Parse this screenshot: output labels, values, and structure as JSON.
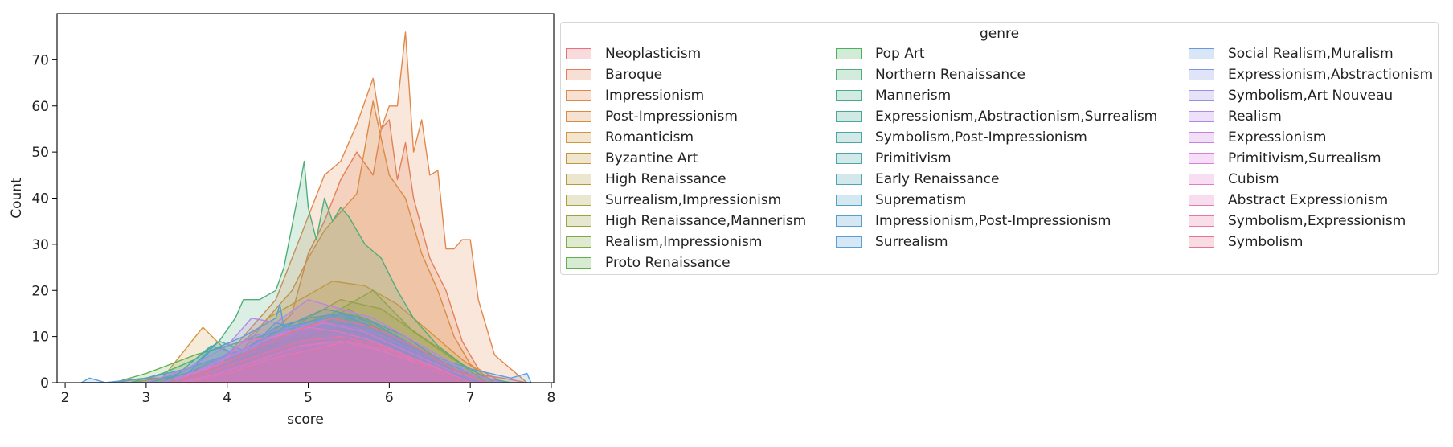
{
  "chart_data": {
    "type": "area",
    "title": "",
    "xlabel": "score",
    "ylabel": "Count",
    "xlim": [
      1.9,
      8.03
    ],
    "ylim": [
      0,
      80
    ],
    "xticks": [
      "2",
      "3",
      "4",
      "5",
      "6",
      "7",
      "8"
    ],
    "yticks": [
      "0",
      "10",
      "20",
      "30",
      "40",
      "50",
      "60",
      "70"
    ],
    "grid": false,
    "legend_placement": "outside right",
    "legend_title": "genre",
    "series": [
      {
        "name": "Neoplasticism",
        "color": "#e8717a",
        "x": [
          2.2,
          2.6,
          3.0,
          3.4,
          3.8,
          4.2,
          4.6,
          5.0,
          5.4,
          5.8,
          6.2,
          6.6,
          7.0,
          7.4,
          7.7
        ],
        "values": [
          0,
          0,
          1,
          1,
          2,
          3,
          4,
          8,
          6,
          7,
          4,
          3,
          2,
          1,
          0
        ]
      },
      {
        "name": "Baroque",
        "color": "#e57f5b",
        "x": [
          3.2,
          3.6,
          4.0,
          4.4,
          4.8,
          5.0,
          5.2,
          5.4,
          5.6,
          5.8,
          5.9,
          6.0,
          6.1,
          6.2,
          6.3,
          6.5,
          6.7,
          6.9,
          7.1,
          7.4
        ],
        "values": [
          0,
          2,
          4,
          8,
          15,
          28,
          35,
          44,
          50,
          45,
          55,
          57,
          44,
          52,
          40,
          27,
          20,
          9,
          3,
          0
        ]
      },
      {
        "name": "Impressionism",
        "color": "#e2884b",
        "x": [
          2.5,
          3.0,
          3.5,
          4.0,
          4.3,
          4.6,
          4.8,
          5.0,
          5.2,
          5.4,
          5.6,
          5.8,
          5.9,
          6.0,
          6.1,
          6.2,
          6.3,
          6.4,
          6.5,
          6.6,
          6.7,
          6.8,
          6.9,
          7.0,
          7.1,
          7.3,
          7.5,
          7.7
        ],
        "values": [
          0,
          1,
          3,
          6,
          12,
          18,
          27,
          36,
          45,
          48,
          56,
          66,
          55,
          60,
          60,
          76,
          50,
          57,
          45,
          46,
          29,
          29,
          31,
          31,
          18,
          6,
          3,
          0
        ]
      },
      {
        "name": "Post-Impressionism",
        "color": "#da8c44",
        "x": [
          3.0,
          3.5,
          4.0,
          4.4,
          4.8,
          5.0,
          5.2,
          5.4,
          5.6,
          5.8,
          6.0,
          6.2,
          6.4,
          6.6,
          6.8,
          7.0,
          7.3
        ],
        "values": [
          0,
          2,
          6,
          12,
          20,
          27,
          33,
          37,
          41,
          61,
          45,
          40,
          28,
          20,
          10,
          4,
          0
        ]
      },
      {
        "name": "Romanticism",
        "color": "#d3963f",
        "x": [
          2.8,
          3.2,
          3.7,
          4.1,
          4.5,
          4.9,
          5.3,
          5.7,
          6.1,
          6.5,
          6.9,
          7.3
        ],
        "values": [
          0,
          1,
          12,
          5,
          14,
          18,
          22,
          21,
          17,
          11,
          5,
          0
        ]
      },
      {
        "name": "Byzantine Art",
        "color": "#c29638",
        "x": [
          3.0,
          3.5,
          4.0,
          4.5,
          5.0,
          5.5,
          6.0,
          6.5,
          7.0
        ],
        "values": [
          0,
          2,
          4,
          7,
          12,
          16,
          10,
          6,
          0
        ]
      },
      {
        "name": "High Renaissance",
        "color": "#b39a3b",
        "x": [
          3.4,
          3.9,
          4.4,
          4.9,
          5.4,
          5.9,
          6.4,
          6.9,
          7.3
        ],
        "values": [
          0,
          3,
          6,
          13,
          18,
          16,
          10,
          4,
          0
        ]
      },
      {
        "name": "Surrealism,Impressionism",
        "color": "#a6a03f",
        "x": [
          3.5,
          4.0,
          4.5,
          5.0,
          5.5,
          6.0,
          6.5,
          7.0
        ],
        "values": [
          0,
          2,
          5,
          9,
          12,
          9,
          4,
          0
        ]
      },
      {
        "name": "High Renaissance,Mannerism",
        "color": "#98a53f",
        "x": [
          3.3,
          3.8,
          4.3,
          4.8,
          5.3,
          5.8,
          6.3,
          6.8,
          7.2
        ],
        "values": [
          0,
          4,
          7,
          12,
          15,
          20,
          11,
          5,
          0
        ]
      },
      {
        "name": "Realism,Impressionism",
        "color": "#80ab44",
        "x": [
          3.5,
          4.0,
          4.5,
          5.0,
          5.5,
          6.0,
          6.5,
          7.0
        ],
        "values": [
          0,
          3,
          6,
          10,
          14,
          11,
          6,
          0
        ]
      },
      {
        "name": "Proto Renaissance",
        "color": "#5fb14b",
        "x": [
          2.6,
          3.0,
          3.3,
          3.6,
          4.0,
          4.4,
          4.8,
          5.2,
          5.6,
          6.0,
          6.4,
          6.8,
          7.2
        ],
        "values": [
          0,
          2,
          4,
          6,
          8,
          10,
          12,
          14,
          11,
          8,
          5,
          2,
          0
        ]
      },
      {
        "name": "Pop Art",
        "color": "#4db05c",
        "x": [
          3.0,
          3.5,
          4.0,
          4.5,
          5.0,
          5.5,
          6.0,
          6.5,
          7.0
        ],
        "values": [
          0,
          2,
          5,
          8,
          10,
          12,
          9,
          5,
          0
        ]
      },
      {
        "name": "Northern Renaissance",
        "color": "#4fae79",
        "x": [
          2.8,
          3.2,
          3.6,
          3.9,
          4.1,
          4.2,
          4.4,
          4.6,
          4.7,
          4.8,
          4.9,
          4.95,
          5.0,
          5.1,
          5.2,
          5.3,
          5.4,
          5.5,
          5.7,
          5.9,
          6.1,
          6.3,
          6.6,
          6.9,
          7.2,
          7.5
        ],
        "values": [
          0,
          2,
          5,
          9,
          14,
          18,
          18,
          20,
          25,
          34,
          43,
          48,
          38,
          31,
          40,
          35,
          38,
          36,
          30,
          27,
          20,
          14,
          8,
          4,
          1,
          0
        ]
      },
      {
        "name": "Mannerism",
        "color": "#49ab8a",
        "x": [
          3.2,
          3.7,
          4.2,
          4.7,
          5.2,
          5.7,
          6.2,
          6.7,
          7.1
        ],
        "values": [
          0,
          3,
          7,
          12,
          16,
          14,
          10,
          4,
          0
        ]
      },
      {
        "name": "Expressionism,Abstractionism,Surrealism",
        "color": "#47a997",
        "x": [
          3.4,
          3.9,
          4.4,
          4.9,
          5.4,
          5.9,
          6.4,
          6.9
        ],
        "values": [
          0,
          2,
          5,
          8,
          10,
          9,
          5,
          0
        ]
      },
      {
        "name": "Symbolism,Post-Impressionism",
        "color": "#49a8a2",
        "x": [
          3.3,
          3.8,
          4.3,
          4.8,
          5.3,
          5.8,
          6.3,
          6.8,
          7.2
        ],
        "values": [
          0,
          3,
          6,
          10,
          13,
          12,
          8,
          3,
          0
        ]
      },
      {
        "name": "Primitivism",
        "color": "#4ba6ac",
        "x": [
          3.2,
          3.6,
          3.9,
          4.2,
          4.6,
          5.0,
          5.4,
          5.8,
          6.2,
          6.6,
          7.0
        ],
        "values": [
          0,
          4,
          9,
          7,
          12,
          14,
          15,
          13,
          9,
          4,
          0
        ]
      },
      {
        "name": "Early Renaissance",
        "color": "#4ea5b8",
        "x": [
          3.0,
          3.4,
          3.8,
          4.2,
          4.6,
          5.0,
          5.4,
          5.8,
          6.2,
          6.6,
          7.0
        ],
        "values": [
          0,
          2,
          8,
          6,
          13,
          11,
          15,
          12,
          8,
          3,
          0
        ]
      },
      {
        "name": "Suprematism",
        "color": "#51a3c4",
        "x": [
          3.5,
          4.0,
          4.5,
          5.0,
          5.5,
          6.0,
          6.5,
          7.0
        ],
        "values": [
          0,
          3,
          6,
          9,
          11,
          9,
          5,
          0
        ]
      },
      {
        "name": "Impressionism,Post-Impressionism",
        "color": "#54a1d0",
        "x": [
          3.4,
          3.8,
          4.2,
          4.6,
          4.65,
          4.7,
          5.0,
          5.4,
          5.8,
          6.2,
          6.6,
          7.0,
          7.4
        ],
        "values": [
          0,
          7,
          10,
          14,
          17,
          12,
          13,
          15,
          12,
          9,
          5,
          2,
          0
        ]
      },
      {
        "name": "Surrealism",
        "color": "#5a9fdc",
        "x": [
          2.2,
          2.3,
          2.5,
          3.0,
          3.5,
          4.0,
          4.5,
          5.0,
          5.5,
          6.0,
          6.5,
          7.0,
          7.5,
          7.7,
          7.75
        ],
        "values": [
          0,
          1,
          0,
          1,
          3,
          6,
          9,
          11,
          13,
          10,
          6,
          3,
          1,
          2,
          0
        ]
      },
      {
        "name": "Social Realism,Muralism",
        "color": "#679ae4",
        "x": [
          3.5,
          4.0,
          4.5,
          5.0,
          5.5,
          6.0,
          6.5,
          7.0
        ],
        "values": [
          0,
          3,
          5,
          8,
          9,
          7,
          4,
          0
        ]
      },
      {
        "name": "Expressionism,Abstractionism",
        "color": "#7f95e8",
        "x": [
          3.3,
          3.8,
          4.3,
          4.8,
          5.3,
          5.8,
          6.3,
          6.8,
          7.2
        ],
        "values": [
          0,
          3,
          7,
          11,
          13,
          11,
          7,
          3,
          0
        ]
      },
      {
        "name": "Symbolism,Art Nouveau",
        "color": "#9b8ee9",
        "x": [
          3.3,
          3.8,
          4.3,
          4.8,
          5.3,
          5.8,
          6.3,
          6.8,
          7.2
        ],
        "values": [
          0,
          4,
          10,
          12,
          14,
          12,
          8,
          3,
          0
        ]
      },
      {
        "name": "Realism",
        "color": "#b487e8",
        "x": [
          3.0,
          3.5,
          4.0,
          4.3,
          4.6,
          5.0,
          5.4,
          5.8,
          6.2,
          6.6,
          7.0,
          7.4
        ],
        "values": [
          0,
          3,
          8,
          14,
          13,
          18,
          16,
          14,
          10,
          6,
          2,
          0
        ]
      },
      {
        "name": "Expressionism",
        "color": "#c981e5",
        "x": [
          3.2,
          3.7,
          4.2,
          4.7,
          5.2,
          5.7,
          6.2,
          6.7,
          7.2
        ],
        "values": [
          0,
          3,
          7,
          11,
          13,
          11,
          7,
          3,
          0
        ]
      },
      {
        "name": "Primitivism,Surrealism",
        "color": "#db7ddc",
        "x": [
          3.4,
          3.9,
          4.4,
          4.9,
          5.4,
          5.9,
          6.4,
          6.9
        ],
        "values": [
          0,
          2,
          5,
          8,
          9,
          7,
          4,
          0
        ]
      },
      {
        "name": "Cubism",
        "color": "#e27ace",
        "x": [
          3.3,
          3.9,
          4.2,
          4.6,
          5.0,
          5.4,
          5.8,
          6.2,
          6.6,
          7.0
        ],
        "values": [
          0,
          4,
          9,
          10,
          12,
          11,
          9,
          6,
          3,
          0
        ]
      },
      {
        "name": "Abstract Expressionism",
        "color": "#e578bb",
        "x": [
          3.5,
          4.0,
          4.5,
          5.0,
          5.5,
          6.0,
          6.5,
          7.0
        ],
        "values": [
          0,
          2,
          5,
          7,
          9,
          7,
          4,
          0
        ]
      },
      {
        "name": "Symbolism,Expressionism",
        "color": "#e776a5",
        "x": [
          3.4,
          3.9,
          4.4,
          4.9,
          5.4,
          5.9,
          6.4,
          6.9
        ],
        "values": [
          0,
          3,
          6,
          9,
          10,
          8,
          4,
          0
        ]
      },
      {
        "name": "Symbolism",
        "color": "#e8748f",
        "x": [
          3.3,
          3.8,
          4.3,
          4.8,
          5.3,
          5.8,
          6.3,
          6.8,
          7.2
        ],
        "values": [
          0,
          3,
          7,
          11,
          14,
          12,
          8,
          3,
          0
        ]
      }
    ]
  }
}
